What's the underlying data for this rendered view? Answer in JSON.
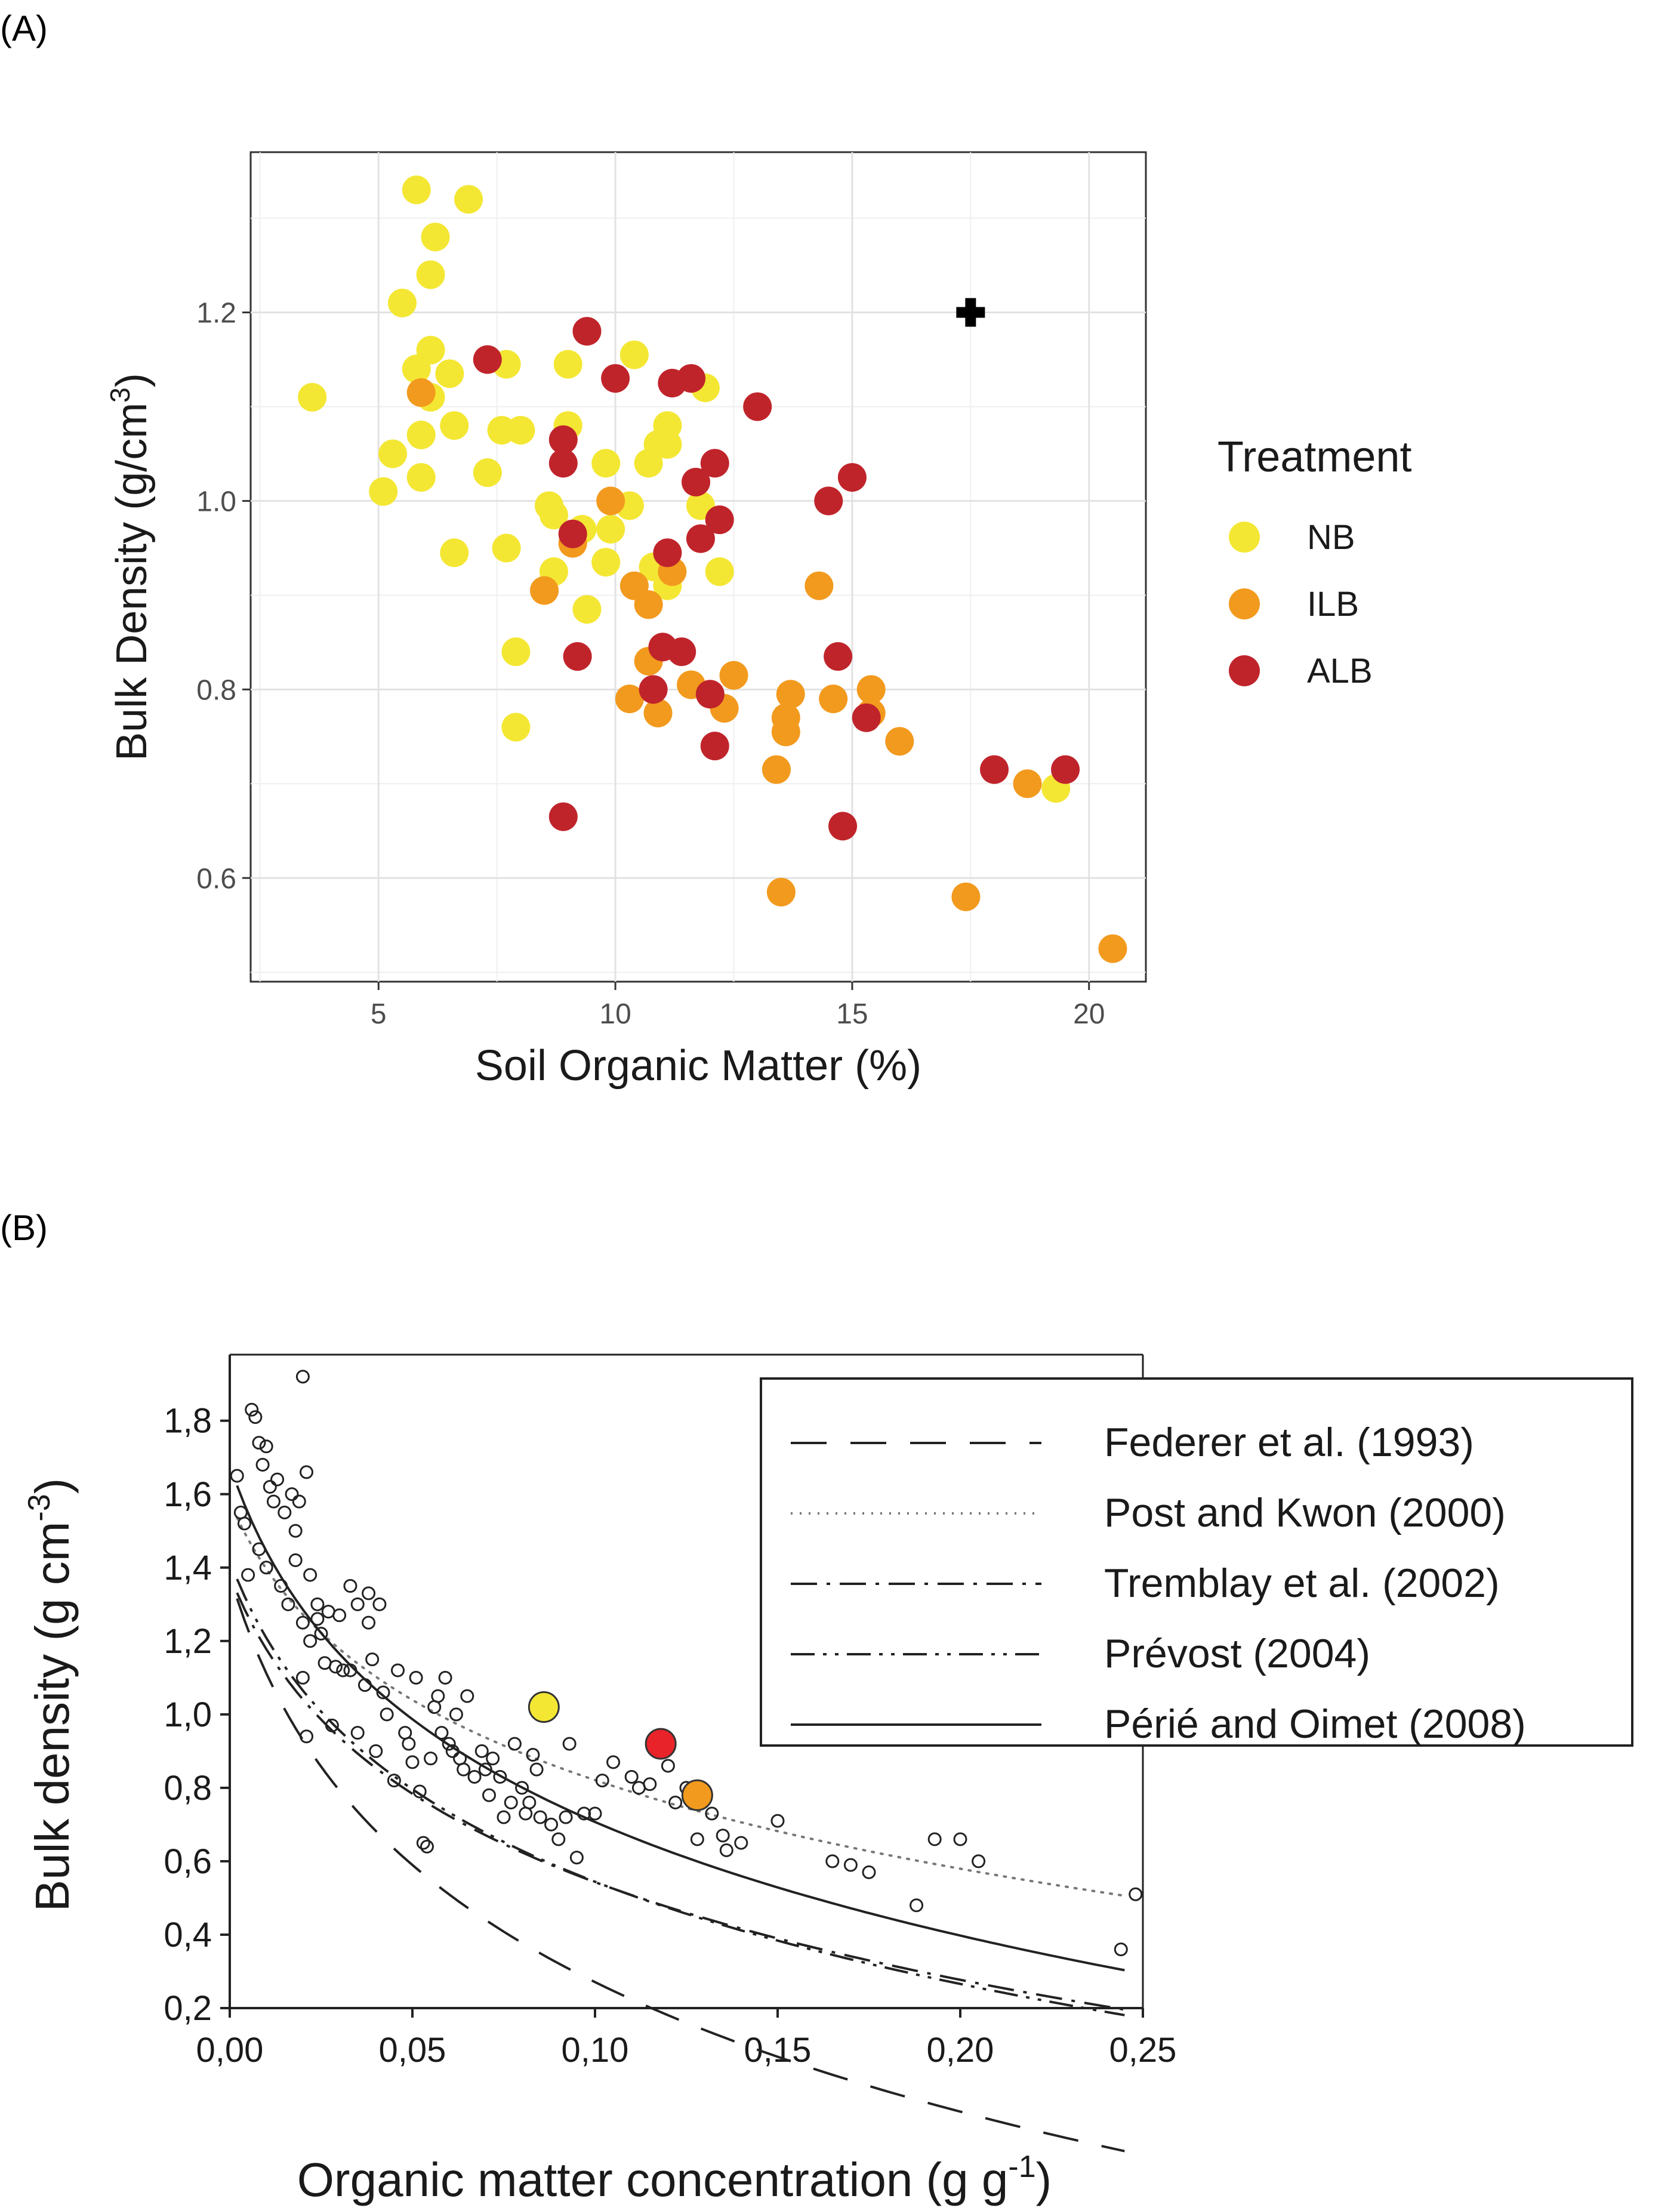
{
  "panel_labels": {
    "a": "(A)",
    "b": "(B)"
  },
  "chart_data": [
    {
      "type": "scatter",
      "xlabel": "Soil Organic Matter (%)",
      "ylabel": "Bulk Density (g/cm",
      "ylabel_sup": "3",
      "ylabel_end": ")",
      "xlim": [
        2.3,
        21.2
      ],
      "ylim": [
        0.49,
        1.37
      ],
      "xticks": [
        5,
        10,
        15,
        20
      ],
      "xtick_labels": [
        "5",
        "10",
        "15",
        "20"
      ],
      "yticks": [
        0.6,
        0.8,
        1.0,
        1.2
      ],
      "ytick_labels": [
        "0.6",
        "0.8",
        "1.0",
        "1.2"
      ],
      "grid": true,
      "legend": {
        "title": "Treatment",
        "position": "right"
      },
      "marker": {
        "name": "reference-cross",
        "x": 17.5,
        "y": 1.2
      },
      "series": [
        {
          "name": "NB",
          "color": "#F4E733",
          "points": [
            [
              5.8,
              1.33
            ],
            [
              6.9,
              1.32
            ],
            [
              6.2,
              1.28
            ],
            [
              6.1,
              1.24
            ],
            [
              5.5,
              1.21
            ],
            [
              6.1,
              1.16
            ],
            [
              5.8,
              1.14
            ],
            [
              6.5,
              1.135
            ],
            [
              7.7,
              1.145
            ],
            [
              9.0,
              1.145
            ],
            [
              3.6,
              1.11
            ],
            [
              6.1,
              1.11
            ],
            [
              5.9,
              1.07
            ],
            [
              6.6,
              1.08
            ],
            [
              7.6,
              1.075
            ],
            [
              8.0,
              1.075
            ],
            [
              9.0,
              1.08
            ],
            [
              5.3,
              1.05
            ],
            [
              7.3,
              1.03
            ],
            [
              5.9,
              1.025
            ],
            [
              5.1,
              1.01
            ],
            [
              9.8,
              1.04
            ],
            [
              10.7,
              1.04
            ],
            [
              10.9,
              1.06
            ],
            [
              11.1,
              1.06
            ],
            [
              11.1,
              1.08
            ],
            [
              10.4,
              1.155
            ],
            [
              8.6,
              0.995
            ],
            [
              8.7,
              0.985
            ],
            [
              9.9,
              0.97
            ],
            [
              10.3,
              0.995
            ],
            [
              11.8,
              0.995
            ],
            [
              11.9,
              1.12
            ],
            [
              6.6,
              0.945
            ],
            [
              7.7,
              0.95
            ],
            [
              8.7,
              0.925
            ],
            [
              9.3,
              0.97
            ],
            [
              9.8,
              0.935
            ],
            [
              9.4,
              0.885
            ],
            [
              10.8,
              0.93
            ],
            [
              11.1,
              0.91
            ],
            [
              12.2,
              0.925
            ],
            [
              7.9,
              0.84
            ],
            [
              7.9,
              0.76
            ],
            [
              19.3,
              0.695
            ]
          ]
        },
        {
          "name": "ILB",
          "color": "#F29A1E",
          "points": [
            [
              5.9,
              1.115
            ],
            [
              9.9,
              1.0
            ],
            [
              9.1,
              0.955
            ],
            [
              8.5,
              0.905
            ],
            [
              10.4,
              0.91
            ],
            [
              10.7,
              0.89
            ],
            [
              11.2,
              0.925
            ],
            [
              10.7,
              0.83
            ],
            [
              10.3,
              0.79
            ],
            [
              10.9,
              0.775
            ],
            [
              11.6,
              0.805
            ],
            [
              12.5,
              0.815
            ],
            [
              12.3,
              0.78
            ],
            [
              13.7,
              0.795
            ],
            [
              13.6,
              0.77
            ],
            [
              13.6,
              0.755
            ],
            [
              13.4,
              0.715
            ],
            [
              14.3,
              0.91
            ],
            [
              14.6,
              0.79
            ],
            [
              15.4,
              0.8
            ],
            [
              15.4,
              0.775
            ],
            [
              16.0,
              0.745
            ],
            [
              13.5,
              0.585
            ],
            [
              17.4,
              0.58
            ],
            [
              18.7,
              0.7
            ],
            [
              20.5,
              0.525
            ]
          ]
        },
        {
          "name": "ALB",
          "color": "#C0242B",
          "points": [
            [
              7.3,
              1.15
            ],
            [
              9.4,
              1.18
            ],
            [
              10.0,
              1.13
            ],
            [
              11.2,
              1.125
            ],
            [
              11.6,
              1.13
            ],
            [
              13.0,
              1.1
            ],
            [
              8.9,
              1.065
            ],
            [
              8.9,
              1.04
            ],
            [
              12.1,
              1.04
            ],
            [
              11.7,
              1.02
            ],
            [
              14.5,
              1.0
            ],
            [
              15.0,
              1.025
            ],
            [
              9.1,
              0.965
            ],
            [
              11.1,
              0.945
            ],
            [
              11.8,
              0.96
            ],
            [
              12.2,
              0.98
            ],
            [
              9.2,
              0.835
            ],
            [
              11.0,
              0.845
            ],
            [
              11.4,
              0.84
            ],
            [
              10.8,
              0.8
            ],
            [
              12.0,
              0.795
            ],
            [
              14.7,
              0.835
            ],
            [
              15.3,
              0.77
            ],
            [
              12.1,
              0.74
            ],
            [
              8.9,
              0.665
            ],
            [
              14.8,
              0.655
            ],
            [
              18.0,
              0.715
            ],
            [
              19.5,
              0.715
            ]
          ]
        }
      ]
    },
    {
      "type": "scatter",
      "xlabel": "Organic matter concentration (g g",
      "xlabel_sup": "-1",
      "xlabel_end": ")",
      "ylabel": "Bulk density (g cm",
      "ylabel_sup": "-3",
      "ylabel_end": ")",
      "xlim": [
        0.0,
        0.25
      ],
      "ylim": [
        0.2,
        1.98
      ],
      "xticks": [
        0.0,
        0.05,
        0.1,
        0.15,
        0.2,
        0.25
      ],
      "xtick_labels": [
        "0,00",
        "0,05",
        "0,10",
        "0,15",
        "0,20",
        "0,25"
      ],
      "yticks": [
        0.2,
        0.4,
        0.6,
        0.8,
        1.0,
        1.2,
        1.4,
        1.6,
        1.8
      ],
      "ytick_labels": [
        "0,2",
        "0,4",
        "0,6",
        "0,8",
        "1,0",
        "1,2",
        "1,4",
        "1,6",
        "1,8"
      ],
      "grid": false,
      "legend": {
        "position": "top-right"
      },
      "series": [
        {
          "name": "Federer et al. (1993)",
          "style": "long-dash",
          "a": 1.38,
          "b": 0.57
        },
        {
          "name": "Post and Kwon (2000)",
          "style": "dotted",
          "a": 1.58,
          "b": 0.39
        },
        {
          "name": "Tremblay et al. (2002)",
          "style": "dash-dot",
          "a": 1.38,
          "b": 0.43
        },
        {
          "name": "Prévost (2004)",
          "style": "dash-dot-dot",
          "a": 1.42,
          "b": 0.45
        },
        {
          "name": "Périé and Oimet (2008)",
          "style": "solid",
          "a": 1.68,
          "b": 0.5
        }
      ],
      "highlight_points": [
        {
          "name": "NB",
          "x": 0.086,
          "y": 1.02,
          "color": "#F4E733"
        },
        {
          "name": "ALB",
          "x": 0.118,
          "y": 0.92,
          "color": "#E8232A"
        },
        {
          "name": "ILB",
          "x": 0.128,
          "y": 0.78,
          "color": "#F29A1E"
        }
      ],
      "points": [
        [
          0.002,
          1.65
        ],
        [
          0.004,
          1.52
        ],
        [
          0.006,
          1.83
        ],
        [
          0.007,
          1.81
        ],
        [
          0.008,
          1.74
        ],
        [
          0.009,
          1.68
        ],
        [
          0.01,
          1.73
        ],
        [
          0.011,
          1.62
        ],
        [
          0.012,
          1.58
        ],
        [
          0.013,
          1.64
        ],
        [
          0.015,
          1.55
        ],
        [
          0.017,
          1.6
        ],
        [
          0.018,
          1.5
        ],
        [
          0.019,
          1.58
        ],
        [
          0.02,
          1.92
        ],
        [
          0.021,
          1.66
        ],
        [
          0.003,
          1.55
        ],
        [
          0.005,
          1.38
        ],
        [
          0.008,
          1.45
        ],
        [
          0.01,
          1.4
        ],
        [
          0.014,
          1.35
        ],
        [
          0.016,
          1.3
        ],
        [
          0.018,
          1.42
        ],
        [
          0.02,
          1.25
        ],
        [
          0.022,
          1.38
        ],
        [
          0.024,
          1.3
        ],
        [
          0.025,
          1.22
        ],
        [
          0.027,
          1.28
        ],
        [
          0.029,
          1.13
        ],
        [
          0.03,
          1.27
        ],
        [
          0.033,
          1.35
        ],
        [
          0.035,
          1.3
        ],
        [
          0.038,
          1.33
        ],
        [
          0.041,
          1.3
        ],
        [
          0.02,
          1.1
        ],
        [
          0.021,
          0.94
        ],
        [
          0.022,
          1.2
        ],
        [
          0.024,
          1.26
        ],
        [
          0.026,
          1.14
        ],
        [
          0.028,
          0.97
        ],
        [
          0.031,
          1.12
        ],
        [
          0.033,
          1.12
        ],
        [
          0.035,
          0.95
        ],
        [
          0.037,
          1.08
        ],
        [
          0.038,
          1.25
        ],
        [
          0.039,
          1.15
        ],
        [
          0.04,
          0.9
        ],
        [
          0.042,
          1.06
        ],
        [
          0.043,
          1.0
        ],
        [
          0.045,
          0.82
        ],
        [
          0.046,
          1.12
        ],
        [
          0.048,
          0.95
        ],
        [
          0.049,
          0.92
        ],
        [
          0.05,
          0.87
        ],
        [
          0.051,
          1.1
        ],
        [
          0.052,
          0.79
        ],
        [
          0.053,
          0.65
        ],
        [
          0.054,
          0.64
        ],
        [
          0.055,
          0.88
        ],
        [
          0.056,
          1.02
        ],
        [
          0.057,
          1.05
        ],
        [
          0.058,
          0.95
        ],
        [
          0.059,
          1.1
        ],
        [
          0.06,
          0.92
        ],
        [
          0.061,
          0.9
        ],
        [
          0.062,
          1.0
        ],
        [
          0.063,
          0.88
        ],
        [
          0.064,
          0.85
        ],
        [
          0.065,
          1.05
        ],
        [
          0.067,
          0.83
        ],
        [
          0.069,
          0.9
        ],
        [
          0.07,
          0.85
        ],
        [
          0.071,
          0.78
        ],
        [
          0.072,
          0.88
        ],
        [
          0.074,
          0.83
        ],
        [
          0.075,
          0.72
        ],
        [
          0.077,
          0.76
        ],
        [
          0.078,
          0.92
        ],
        [
          0.08,
          0.8
        ],
        [
          0.081,
          0.73
        ],
        [
          0.082,
          0.76
        ],
        [
          0.083,
          0.89
        ],
        [
          0.084,
          0.85
        ],
        [
          0.085,
          0.72
        ],
        [
          0.088,
          0.7
        ],
        [
          0.09,
          0.66
        ],
        [
          0.092,
          0.72
        ],
        [
          0.093,
          0.92
        ],
        [
          0.095,
          0.61
        ],
        [
          0.097,
          0.73
        ],
        [
          0.1,
          0.73
        ],
        [
          0.102,
          0.82
        ],
        [
          0.105,
          0.87
        ],
        [
          0.11,
          0.83
        ],
        [
          0.112,
          0.8
        ],
        [
          0.115,
          0.81
        ],
        [
          0.12,
          0.86
        ],
        [
          0.122,
          0.76
        ],
        [
          0.125,
          0.8
        ],
        [
          0.128,
          0.66
        ],
        [
          0.132,
          0.73
        ],
        [
          0.135,
          0.67
        ],
        [
          0.136,
          0.63
        ],
        [
          0.14,
          0.65
        ],
        [
          0.15,
          0.71
        ],
        [
          0.165,
          0.6
        ],
        [
          0.17,
          0.59
        ],
        [
          0.175,
          0.57
        ],
        [
          0.188,
          0.48
        ],
        [
          0.193,
          0.66
        ],
        [
          0.2,
          0.66
        ],
        [
          0.205,
          0.6
        ],
        [
          0.244,
          0.36
        ],
        [
          0.248,
          0.51
        ]
      ]
    }
  ]
}
